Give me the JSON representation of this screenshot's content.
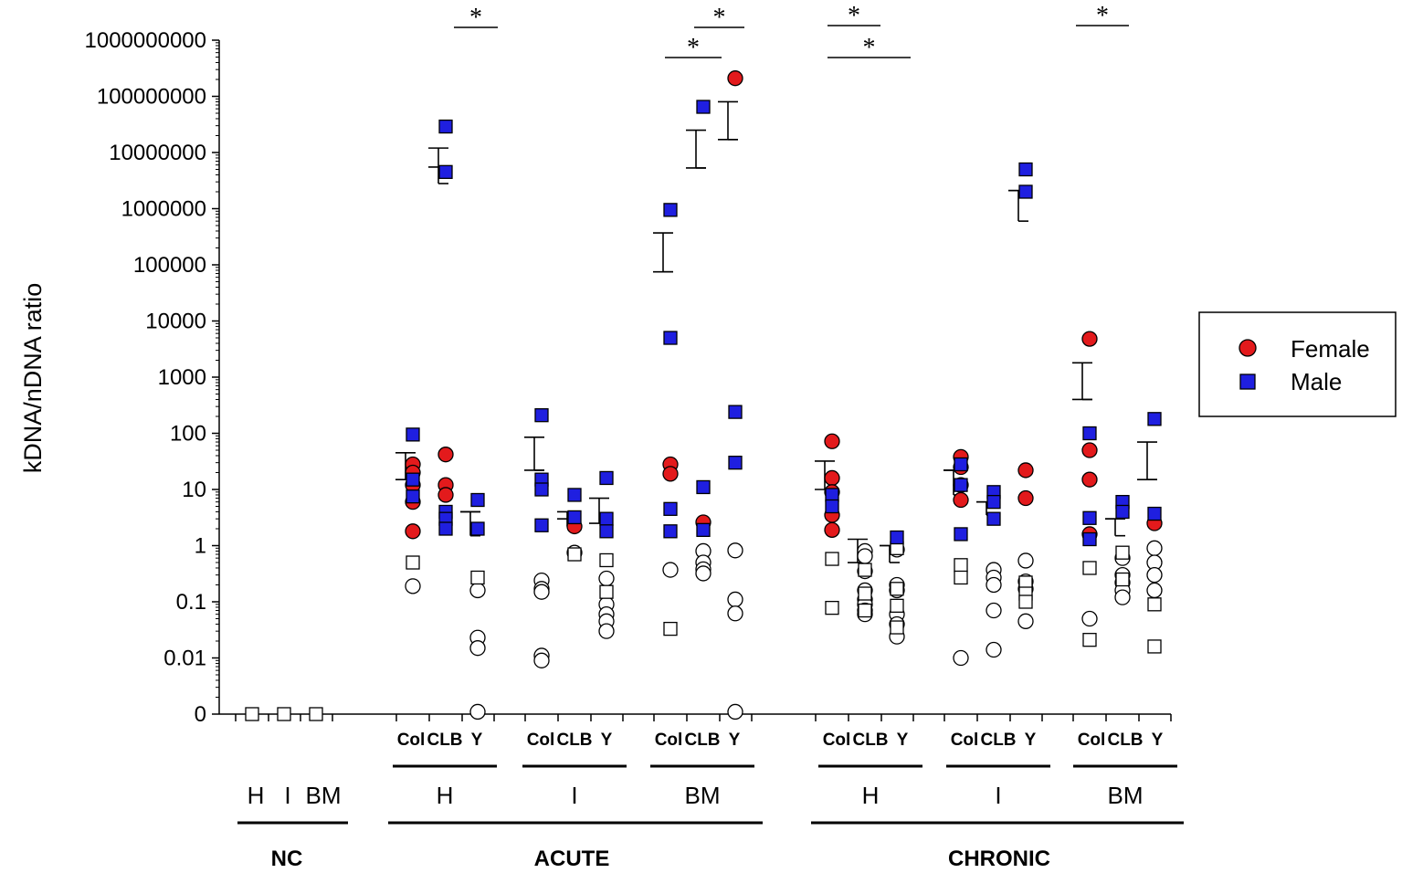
{
  "chart_data": {
    "type": "scatter",
    "title": "",
    "ylabel": "kDNA/nDNA ratio",
    "yscale": "log",
    "ylim": [
      0.001,
      1000000000
    ],
    "y_ticks": [
      {
        "value": 0.001,
        "label": "0"
      },
      {
        "value": 0.01,
        "label": "0.01"
      },
      {
        "value": 0.1,
        "label": "0.1"
      },
      {
        "value": 1,
        "label": "1"
      },
      {
        "value": 10,
        "label": "10"
      },
      {
        "value": 100,
        "label": "100"
      },
      {
        "value": 1000,
        "label": "1000"
      },
      {
        "value": 10000,
        "label": "10000"
      },
      {
        "value": 100000,
        "label": "100000"
      },
      {
        "value": 1000000,
        "label": "1000000"
      },
      {
        "value": 10000000,
        "label": "10000000"
      },
      {
        "value": 100000000,
        "label": "100000000"
      },
      {
        "value": 1000000000,
        "label": "1000000000"
      }
    ],
    "legend": {
      "position": "right",
      "entries": [
        {
          "name": "Female",
          "marker": "circle",
          "color": "#e31a1c"
        },
        {
          "name": "Male",
          "marker": "square",
          "color": "#1f1fe0"
        }
      ]
    },
    "colors": {
      "female": "#e31a1c",
      "male": "#1f1fe0",
      "negative": "#ffffff",
      "stroke": "#000000"
    },
    "groups": [
      {
        "label": "NC",
        "tissues": [
          {
            "label": "H",
            "categories": [
              "H"
            ]
          },
          {
            "label": "I",
            "categories": [
              "I"
            ]
          },
          {
            "label": "BM",
            "categories": [
              "BM"
            ]
          }
        ]
      },
      {
        "label": "ACUTE",
        "tissues": [
          {
            "label": "H",
            "categories": [
              "Col",
              "CLB",
              "Y"
            ]
          },
          {
            "label": "I",
            "categories": [
              "Col",
              "CLB",
              "Y"
            ]
          },
          {
            "label": "BM",
            "categories": [
              "Col",
              "CLB",
              "Y"
            ]
          }
        ]
      },
      {
        "label": "CHRONIC",
        "tissues": [
          {
            "label": "H",
            "categories": [
              "Col",
              "CLB",
              "Y"
            ]
          },
          {
            "label": "I",
            "categories": [
              "Col",
              "CLB",
              "Y"
            ]
          },
          {
            "label": "BM",
            "categories": [
              "Col",
              "CLB",
              "Y"
            ]
          }
        ]
      }
    ],
    "series": [
      {
        "group": "NC",
        "tissue": "H",
        "strain": "",
        "mean": null,
        "error_bar": null,
        "female": [],
        "male": [],
        "neg_circle": [],
        "neg_square": [
          0.001
        ]
      },
      {
        "group": "NC",
        "tissue": "I",
        "strain": "",
        "mean": null,
        "error_bar": null,
        "female": [],
        "male": [],
        "neg_circle": [],
        "neg_square": [
          0.001
        ]
      },
      {
        "group": "NC",
        "tissue": "BM",
        "strain": "",
        "mean": null,
        "error_bar": null,
        "female": [],
        "male": [],
        "neg_circle": [],
        "neg_square": [
          0.001
        ]
      },
      {
        "group": "ACUTE",
        "tissue": "H",
        "strain": "Col",
        "mean": 15,
        "error_bar": [
          15,
          45
        ],
        "female": [
          28,
          20,
          12,
          6,
          1.8
        ],
        "male": [
          95,
          15,
          7.5
        ],
        "neg_circle": [
          0.19
        ],
        "neg_square": [
          0.5
        ]
      },
      {
        "group": "ACUTE",
        "tissue": "H",
        "strain": "CLB",
        "mean": 5500000,
        "error_bar": [
          2800000,
          12000000
        ],
        "female": [
          42,
          12,
          8
        ],
        "male": [
          29000000,
          4500000,
          4,
          3,
          2
        ],
        "neg_circle": [],
        "neg_square": []
      },
      {
        "group": "ACUTE",
        "tissue": "H",
        "strain": "Y",
        "mean": 4,
        "error_bar": [
          1.5,
          4
        ],
        "female": [],
        "male": [
          6.5,
          2
        ],
        "neg_circle": [
          0.16,
          0.023,
          0.015,
          0.0011
        ],
        "neg_square": [
          0.27
        ]
      },
      {
        "group": "ACUTE",
        "tissue": "I",
        "strain": "Col",
        "mean": 22,
        "error_bar": [
          22,
          85
        ],
        "female": [],
        "male": [
          210,
          15,
          10,
          2.3
        ],
        "neg_circle": [
          0.24,
          0.17,
          0.15,
          0.011,
          0.009
        ],
        "neg_square": []
      },
      {
        "group": "ACUTE",
        "tissue": "I",
        "strain": "CLB",
        "mean": 3,
        "error_bar": [
          2.2,
          4
        ],
        "female": [
          2.2
        ],
        "male": [
          8,
          3.2
        ],
        "neg_circle": [
          0.75
        ],
        "neg_square": [
          0.7
        ]
      },
      {
        "group": "ACUTE",
        "tissue": "I",
        "strain": "Y",
        "mean": 2.5,
        "error_bar": [
          2.5,
          7
        ],
        "female": [],
        "male": [
          16,
          3,
          1.8
        ],
        "neg_circle": [
          0.26,
          0.09,
          0.06,
          0.045,
          0.03
        ],
        "neg_square": [
          0.55,
          0.15
        ]
      },
      {
        "group": "ACUTE",
        "tissue": "BM",
        "strain": "Col",
        "mean": 75000,
        "error_bar": [
          75000,
          370000
        ],
        "female": [
          28,
          19
        ],
        "male": [
          950000,
          5000,
          4.5,
          1.8
        ],
        "neg_circle": [
          0.37
        ],
        "neg_square": [
          0.033
        ]
      },
      {
        "group": "ACUTE",
        "tissue": "BM",
        "strain": "CLB",
        "mean": 5300000,
        "error_bar": [
          5300000,
          25000000
        ],
        "female": [
          2.6
        ],
        "male": [
          65000000,
          11,
          1.9
        ],
        "neg_circle": [
          0.8,
          0.5,
          0.38,
          0.32
        ],
        "neg_square": []
      },
      {
        "group": "ACUTE",
        "tissue": "BM",
        "strain": "Y",
        "mean": 17000000,
        "error_bar": [
          17000000,
          80000000
        ],
        "female": [
          210000000
        ],
        "male": [
          240,
          30
        ],
        "neg_circle": [
          0.82,
          0.11,
          0.062,
          0.0011
        ],
        "neg_square": []
      },
      {
        "group": "CHRONIC",
        "tissue": "H",
        "strain": "Col",
        "mean": 10,
        "error_bar": [
          10,
          32
        ],
        "female": [
          72,
          16,
          9,
          3.5,
          1.9
        ],
        "male": [
          8,
          5
        ],
        "neg_circle": [],
        "neg_square": [
          0.58,
          0.078
        ]
      },
      {
        "group": "CHRONIC",
        "tissue": "H",
        "strain": "CLB",
        "mean": 0.5,
        "error_bar": [
          0.5,
          1.3
        ],
        "female": [],
        "male": [],
        "neg_circle": [
          0.8,
          0.65,
          0.35,
          0.16,
          0.11,
          0.09,
          0.07,
          0.06
        ],
        "neg_square": [
          0.37,
          0.14,
          0.07
        ]
      },
      {
        "group": "CHRONIC",
        "tissue": "H",
        "strain": "Y",
        "mean": 1,
        "error_bar": [
          0.5,
          1
        ],
        "female": [],
        "male": [
          1.4
        ],
        "neg_circle": [
          0.85,
          0.2,
          0.16,
          0.06,
          0.04,
          0.024
        ],
        "neg_square": [
          0.9,
          0.17,
          0.085,
          0.035
        ]
      },
      {
        "group": "CHRONIC",
        "tissue": "I",
        "strain": "Col",
        "mean": 22,
        "error_bar": [
          8,
          22
        ],
        "female": [
          38,
          25,
          12,
          6.5
        ],
        "male": [
          28,
          12,
          1.6
        ],
        "neg_circle": [
          0.01
        ],
        "neg_square": [
          0.45,
          0.27
        ]
      },
      {
        "group": "CHRONIC",
        "tissue": "I",
        "strain": "CLB",
        "mean": 6,
        "error_bar": [
          3.5,
          6
        ],
        "female": [],
        "male": [
          9,
          6,
          3
        ],
        "neg_circle": [
          0.37,
          0.27,
          0.2,
          0.07,
          0.014
        ],
        "neg_square": []
      },
      {
        "group": "CHRONIC",
        "tissue": "I",
        "strain": "Y",
        "mean": 2100000,
        "error_bar": [
          600000,
          2100000
        ],
        "female": [
          22,
          7
        ],
        "male": [
          5000000,
          2000000
        ],
        "neg_circle": [
          0.54,
          0.23,
          0.17,
          0.045
        ],
        "neg_square": [
          0.22,
          0.14,
          0.1
        ]
      },
      {
        "group": "CHRONIC",
        "tissue": "BM",
        "strain": "Col",
        "mean": 400,
        "error_bar": [
          400,
          1800
        ],
        "female": [
          4800,
          50,
          15,
          1.6
        ],
        "male": [
          100,
          3.1,
          1.3
        ],
        "neg_circle": [
          0.05
        ],
        "neg_square": [
          0.4,
          0.021
        ]
      },
      {
        "group": "CHRONIC",
        "tissue": "BM",
        "strain": "CLB",
        "mean": 3,
        "error_bar": [
          1.5,
          3
        ],
        "female": [],
        "male": [
          6,
          4
        ],
        "neg_circle": [
          0.6,
          0.3,
          0.22,
          0.16,
          0.12
        ],
        "neg_square": [
          0.75,
          0.25
        ]
      },
      {
        "group": "CHRONIC",
        "tissue": "BM",
        "strain": "Y",
        "mean": 15,
        "error_bar": [
          15,
          70
        ],
        "female": [
          2.5
        ],
        "male": [
          180,
          3.7
        ],
        "neg_circle": [
          0.9,
          0.5,
          0.3,
          0.16
        ],
        "neg_square": [
          0.09,
          0.016
        ]
      }
    ],
    "significance": [
      {
        "group": "ACUTE",
        "tissue": "H",
        "from": "CLB",
        "to": "Y",
        "label": "*"
      },
      {
        "group": "ACUTE",
        "tissue": "BM",
        "from": "CLB",
        "to": "Y",
        "label": "*"
      },
      {
        "group": "ACUTE",
        "tissue": "BM",
        "from": "Col",
        "to": "CLB",
        "label": "*"
      },
      {
        "group": "CHRONIC",
        "tissue": "H",
        "from": "Col",
        "to": "CLB",
        "label": "*"
      },
      {
        "group": "CHRONIC",
        "tissue": "H",
        "from": "Col",
        "to": "Y",
        "label": "*"
      },
      {
        "group": "CHRONIC",
        "tissue": "BM",
        "from": "Col",
        "to": "CLB",
        "label": "*"
      }
    ]
  }
}
